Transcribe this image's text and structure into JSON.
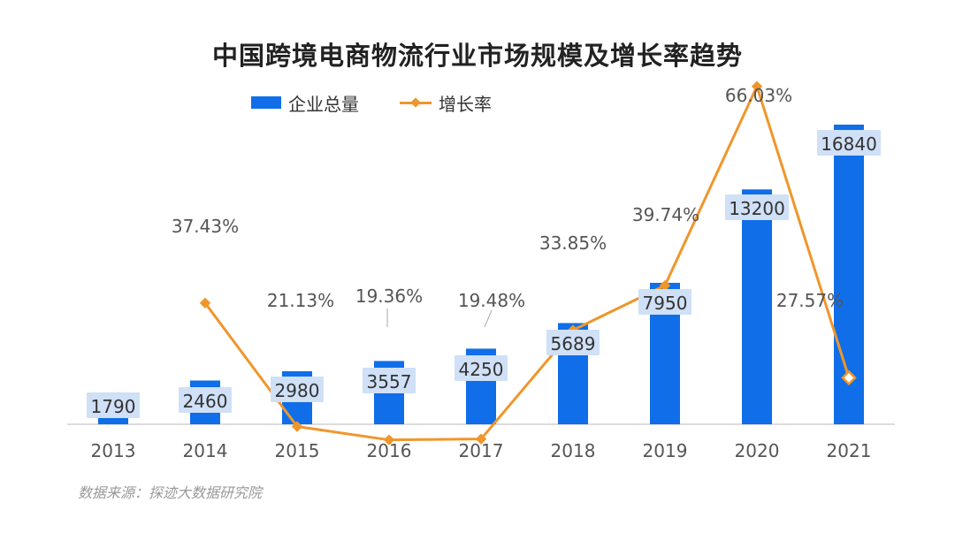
{
  "title": "中国跨境电商物流行业市场规模及增长率趋势",
  "legend": {
    "bar_label": "企业总量",
    "line_label": "增长率"
  },
  "source": "数据来源：探迹大数据研究院",
  "colors": {
    "bar": "#0f6ee8",
    "line": "#f0962a",
    "label_box": "#cfe0f7",
    "axis": "#d0d0d0"
  },
  "chart_data": {
    "type": "bar",
    "title": "中国跨境电商物流行业市场规模及增长率趋势",
    "categories": [
      "2013",
      "2014",
      "2015",
      "2016",
      "2017",
      "2018",
      "2019",
      "2020",
      "2021"
    ],
    "series": [
      {
        "name": "企业总量",
        "type": "bar",
        "values": [
          1790,
          2460,
          2980,
          3557,
          4250,
          5689,
          7950,
          13200,
          16840
        ],
        "labels": [
          "1790",
          "2460",
          "2980",
          "3557",
          "4250",
          "5689",
          "7950",
          "13200",
          "16840"
        ]
      },
      {
        "name": "增长率",
        "type": "line",
        "values": [
          null,
          37.43,
          21.13,
          19.36,
          19.48,
          33.85,
          39.74,
          66.03,
          27.57
        ],
        "labels": [
          "",
          "37.43%",
          "21.13%",
          "19.36%",
          "19.48%",
          "33.85%",
          "39.74%",
          "66.03%",
          "27.57%"
        ]
      }
    ],
    "legend_position": "top",
    "grid": false
  }
}
